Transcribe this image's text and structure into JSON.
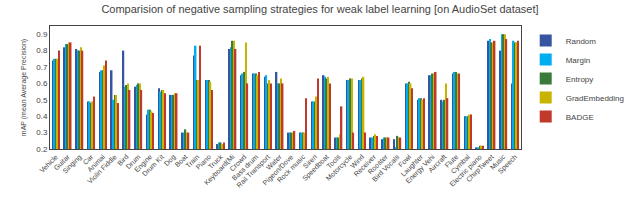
{
  "chart_data": {
    "type": "bar",
    "title": "Comparision of negative sampling strategies for weak label learning [on AudioSet dataset]",
    "ylabel": "mAP (mean Average Precision)",
    "ylim": [
      0.2,
      0.95
    ],
    "yticks": [
      0.2,
      0.3,
      0.4,
      0.5,
      0.6,
      0.7,
      0.8,
      0.9
    ],
    "grid": false,
    "legend": "upper right",
    "categories": [
      "Vehicle",
      "Guitar",
      "Singing",
      "Car",
      "Animal",
      "Violin Fiddle",
      "Bird",
      "Drum",
      "Engine",
      "Drum Kit",
      "Dog",
      "Boat",
      "Train",
      "Piano",
      "Truck",
      "Keyboard(Mi",
      "Crowd",
      "Bass drum",
      "Rail Transport",
      "Water",
      "Pigeon/Dove",
      "Rock music",
      "Siren",
      "Speedboat",
      "Tools",
      "Motorcycle",
      "Wind",
      "Receiver",
      "Rooster",
      "Bird Vocals",
      "Fowl",
      "Laughter",
      "Energy Vehi",
      "Aircraft",
      "Flute",
      "Cymbal",
      "Electric piano",
      "ChirpTweet",
      "Music",
      "Speech"
    ],
    "series": [
      {
        "name": "Random",
        "color": "#3655a0",
        "values": [
          0.74,
          0.82,
          0.81,
          0.49,
          0.67,
          0.68,
          0.8,
          0.58,
          0.41,
          0.57,
          0.53,
          0.3,
          0.77,
          0.62,
          0.23,
          0.81,
          0.65,
          0.66,
          0.64,
          0.67,
          0.3,
          0.3,
          0.49,
          0.65,
          0.27,
          0.62,
          0.62,
          0.27,
          0.26,
          0.26,
          0.6,
          0.5,
          0.65,
          0.5,
          0.66,
          0.4,
          0.21,
          0.86,
          0.8,
          0.6
        ]
      },
      {
        "name": "Margin",
        "color": "#00aeef",
        "values": [
          0.75,
          0.84,
          0.8,
          0.49,
          0.68,
          0.5,
          0.58,
          0.59,
          0.44,
          0.55,
          0.53,
          0.3,
          0.83,
          0.62,
          0.24,
          0.82,
          0.66,
          0.66,
          0.65,
          0.6,
          0.3,
          0.3,
          0.49,
          0.64,
          0.27,
          0.62,
          0.62,
          0.27,
          0.27,
          0.21,
          0.6,
          0.51,
          0.65,
          0.49,
          0.67,
          0.4,
          0.21,
          0.87,
          0.9,
          0.86
        ]
      },
      {
        "name": "Entropy",
        "color": "#3a7a3a",
        "values": [
          0.75,
          0.84,
          0.8,
          0.48,
          0.68,
          0.53,
          0.59,
          0.6,
          0.44,
          0.56,
          0.53,
          0.32,
          0.62,
          0.62,
          0.24,
          0.86,
          0.67,
          0.66,
          0.6,
          0.6,
          0.3,
          0.3,
          0.49,
          0.63,
          0.27,
          0.63,
          0.63,
          0.28,
          0.27,
          0.28,
          0.61,
          0.51,
          0.66,
          0.5,
          0.67,
          0.4,
          0.22,
          0.85,
          0.9,
          0.85
        ]
      },
      {
        "name": "GradEmbedding",
        "color": "#c8b400",
        "values": [
          0.75,
          0.85,
          0.82,
          0.49,
          0.71,
          0.53,
          0.6,
          0.6,
          0.43,
          0.56,
          0.54,
          0.3,
          0.62,
          0.61,
          0.23,
          0.86,
          0.85,
          0.65,
          0.62,
          0.63,
          0.3,
          0.3,
          0.52,
          0.64,
          0.29,
          0.63,
          0.64,
          0.29,
          0.27,
          0.27,
          0.6,
          0.5,
          0.66,
          0.6,
          0.66,
          0.41,
          0.22,
          0.85,
          0.9,
          0.85
        ]
      },
      {
        "name": "BADGE",
        "color": "#c0392b",
        "values": [
          0.8,
          0.85,
          0.8,
          0.52,
          0.74,
          0.48,
          0.56,
          0.56,
          0.42,
          0.54,
          0.54,
          0.3,
          0.83,
          0.56,
          0.24,
          0.81,
          0.6,
          0.67,
          0.6,
          0.6,
          0.31,
          0.51,
          0.63,
          0.6,
          0.46,
          0.3,
          0.3,
          0.28,
          0.27,
          0.27,
          0.57,
          0.51,
          0.67,
          0.51,
          0.66,
          0.41,
          0.22,
          0.86,
          0.87,
          0.86
        ]
      }
    ]
  }
}
